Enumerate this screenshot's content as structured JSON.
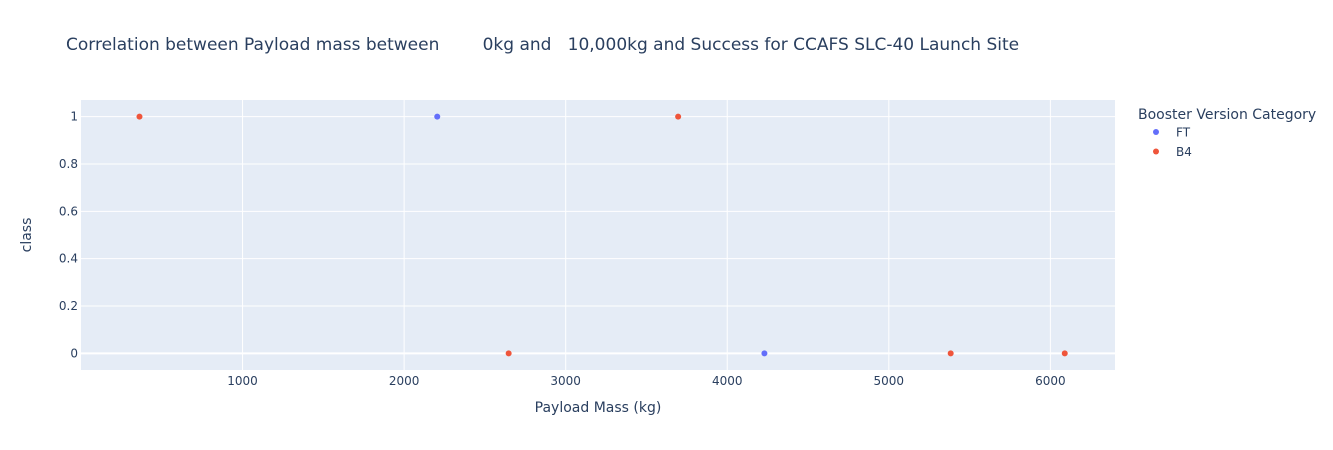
{
  "chart_data": {
    "type": "scatter",
    "title": "Correlation between Payload mass between        0kg and   10,000kg and Success for CCAFS SLC-40 Launch Site",
    "xlabel": "Payload Mass (kg)",
    "ylabel": "class",
    "xlim": [
      0,
      6400
    ],
    "ylim": [
      -0.07,
      1.07
    ],
    "x_ticks": [
      1000,
      2000,
      3000,
      4000,
      5000,
      6000
    ],
    "y_ticks": [
      0,
      0.2,
      0.4,
      0.6,
      0.8,
      1
    ],
    "grid": true,
    "legend_title": "Booster Version Category",
    "legend_position": "right",
    "series": [
      {
        "name": "FT",
        "color": "#636efa",
        "points": [
          {
            "x": 2205,
            "y": 1
          },
          {
            "x": 4230,
            "y": 0
          }
        ]
      },
      {
        "name": "B4",
        "color": "#ef553b",
        "points": [
          {
            "x": 362,
            "y": 1
          },
          {
            "x": 2647,
            "y": 0
          },
          {
            "x": 3696,
            "y": 1
          },
          {
            "x": 5383,
            "y": 0
          },
          {
            "x": 6089,
            "y": 0
          }
        ]
      }
    ]
  }
}
